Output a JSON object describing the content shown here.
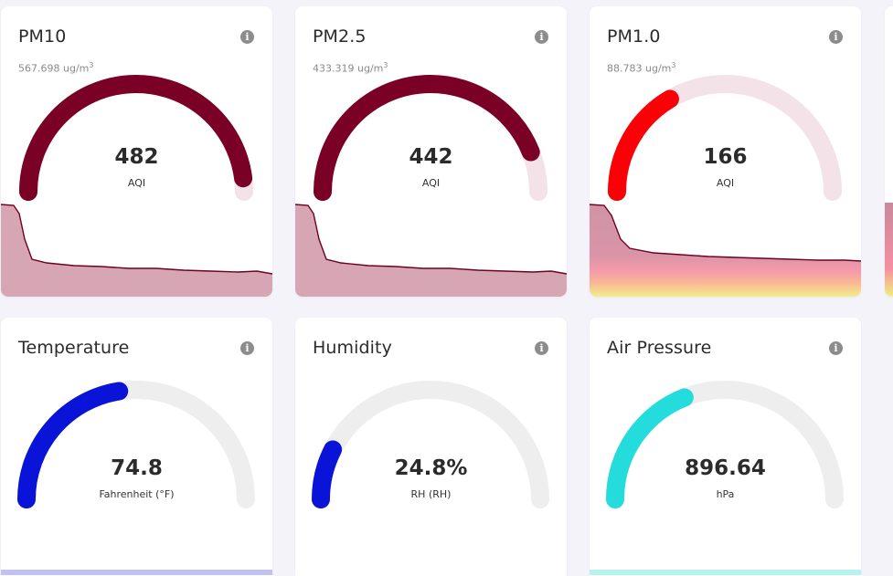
{
  "cards": [
    {
      "id": "pm10",
      "title": "PM10",
      "reading": "567.698",
      "reading_unit": "ug/m",
      "reading_sup": "3",
      "value": "482",
      "unit": "AQI",
      "fraction": 0.96,
      "color": "#7a0025",
      "track": "#f3e3e8"
    },
    {
      "id": "pm25",
      "title": "PM2.5",
      "reading": "433.319",
      "reading_unit": "ug/m",
      "reading_sup": "3",
      "value": "442",
      "unit": "AQI",
      "fraction": 0.88,
      "color": "#7a0025",
      "track": "#f3e3e8"
    },
    {
      "id": "pm10b",
      "title": "PM1.0",
      "reading": "88.783",
      "reading_unit": "ug/m",
      "reading_sup": "3",
      "value": "166",
      "unit": "AQI",
      "fraction": 0.33,
      "color": "#fb0006",
      "track": "#f3e3e8"
    },
    {
      "id": "temp",
      "title": "Temperature",
      "value": "74.8",
      "unit": "Fahrenheit (°F)",
      "fraction": 0.45,
      "color": "#0a14d8",
      "track": "#eeeeee"
    },
    {
      "id": "hum",
      "title": "Humidity",
      "value": "24.8%",
      "unit": "RH (RH)",
      "fraction": 0.15,
      "color": "#0a14d8",
      "track": "#eeeeee"
    },
    {
      "id": "press",
      "title": "Air Pressure",
      "value": "896.64",
      "unit": "hPa",
      "fraction": 0.38,
      "color": "#25dcdc",
      "track": "#eeeeee"
    }
  ],
  "icons": {
    "info": "info-icon"
  }
}
